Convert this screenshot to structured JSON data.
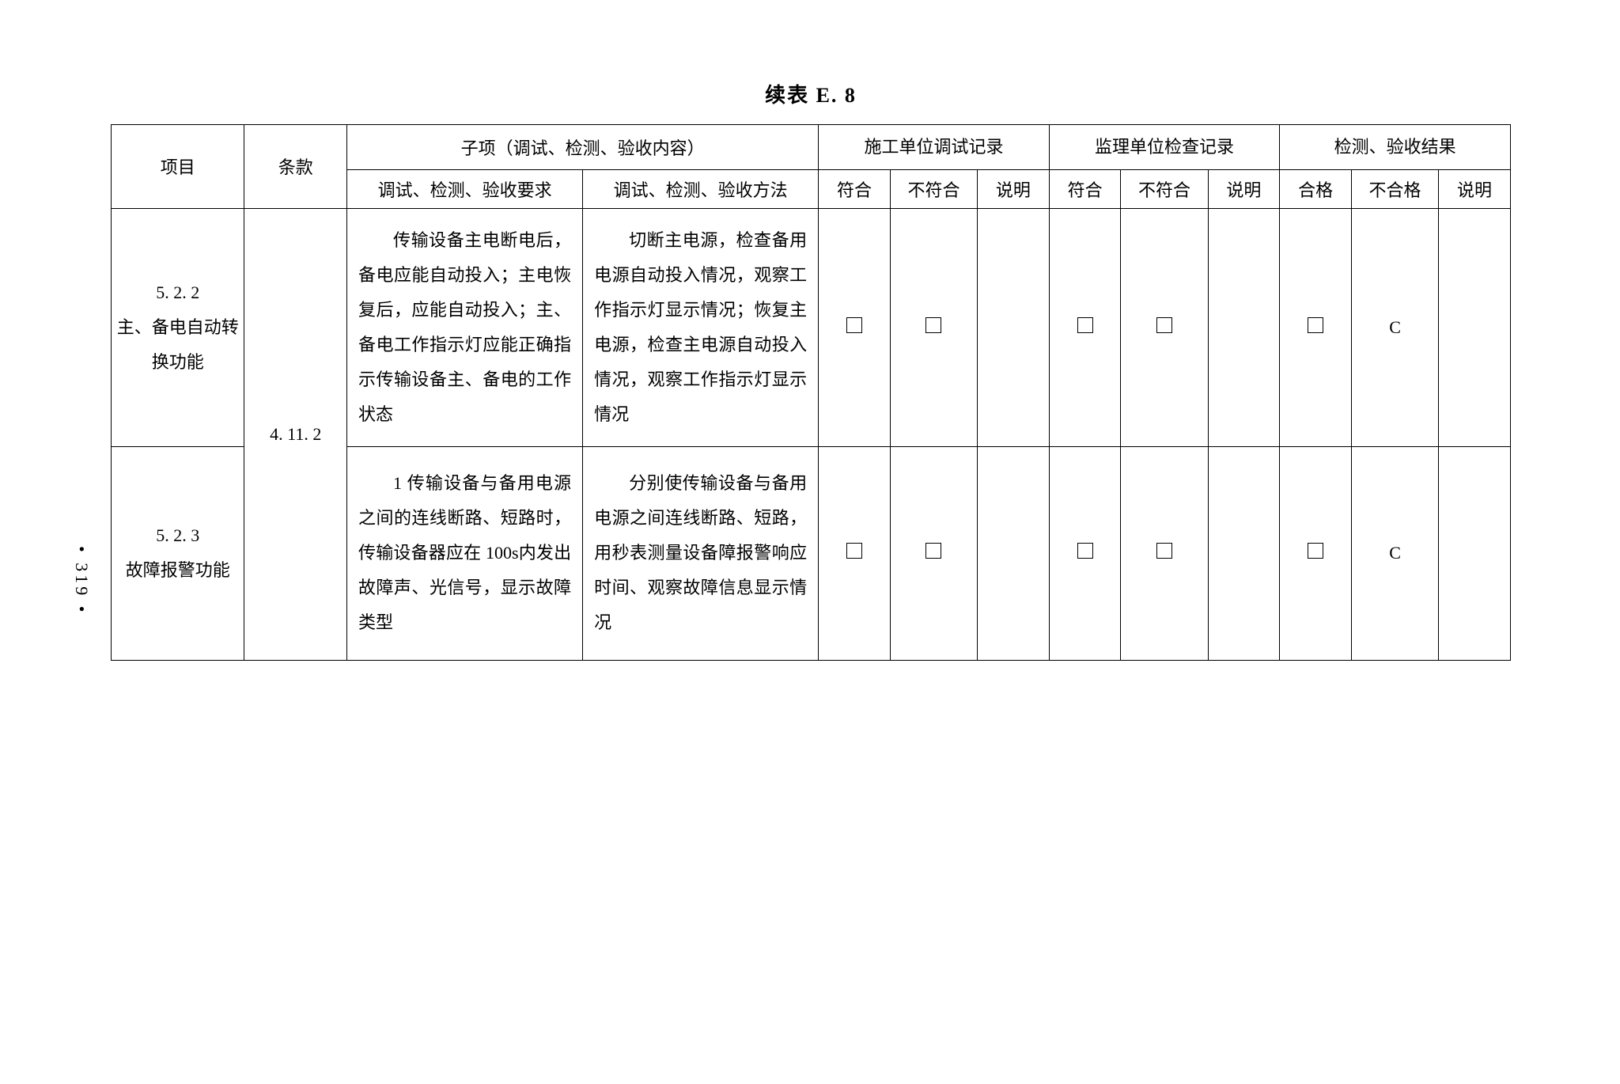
{
  "page": {
    "title": "续表 E. 8",
    "pageNumber": "• 319 •"
  },
  "headers": {
    "project": "项目",
    "clause": "条款",
    "subitem": "子项（调试、检测、验收内容）",
    "requirement": "调试、检测、验收要求",
    "method": "调试、检测、验收方法",
    "construction": "施工单位调试记录",
    "supervision": "监理单位检查记录",
    "inspection": "检测、验收结果",
    "conform": "符合",
    "noconform": "不符合",
    "note": "说明",
    "pass": "合格",
    "nopass": "不合格"
  },
  "clause": "4. 11. 2",
  "rows": [
    {
      "projectNum": "5. 2. 2",
      "projectName": "主、备电自动转换功能",
      "requirement": "传输设备主电断电后，备电应能自动投入；主电恢复后，应能自动投入；主、备电工作指示灯应能正确指示传输设备主、备电的工作状态",
      "method": "切断主电源，检查备用电源自动投入情况，观察工作指示灯显示情况；恢复主电源，检查主电源自动投入情况，观察工作指示灯显示情况",
      "nopassMark": "C"
    },
    {
      "projectNum": "5. 2. 3",
      "projectName": "故障报警功能",
      "requirement": "1 传输设备与备用电源之间的连线断路、短路时，传输设备器应在 100s内发出故障声、光信号，显示故障类型",
      "method": "分别使传输设备与备用电源之间连线断路、短路，用秒表测量设备障报警响应时间、观察故障信息显示情况",
      "nopassMark": "C"
    }
  ],
  "styles": {
    "fontFamily": "SimSun",
    "borderColor": "#000000",
    "backgroundColor": "#ffffff",
    "textColor": "#000000",
    "titleFontSize": 26,
    "cellFontSize": 22,
    "lineHeight": 2.0
  }
}
